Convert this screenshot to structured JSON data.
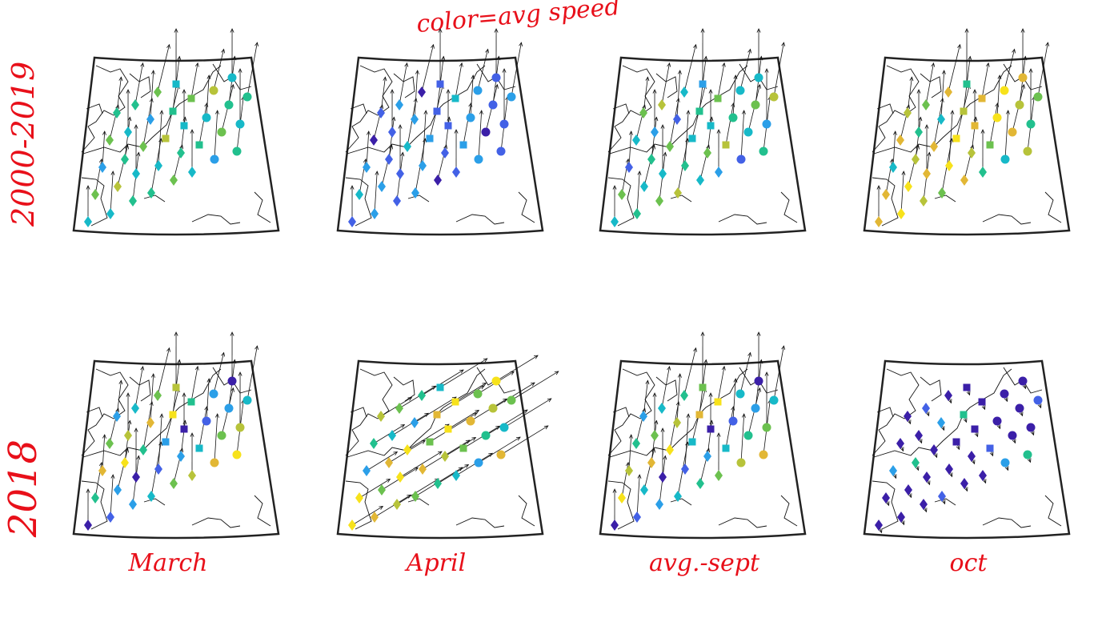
{
  "annotations": {
    "title": "color=avg speed",
    "row_labels": [
      "2000-2019",
      "2018"
    ],
    "column_labels": [
      "March",
      "April",
      "avg.-sept",
      "oct"
    ],
    "annotation_color": "#e8101a"
  },
  "maps": [
    {
      "row": "2000-2019",
      "column": "March",
      "palette": "cyan-green"
    },
    {
      "row": "2000-2019",
      "column": "April",
      "palette": "blue"
    },
    {
      "row": "2000-2019",
      "column": "avg.-sept",
      "palette": "cyan-olive"
    },
    {
      "row": "2000-2019",
      "column": "oct",
      "palette": "yellow-green"
    },
    {
      "row": "2018",
      "column": "March",
      "palette": "mixed-violet"
    },
    {
      "row": "2018",
      "column": "April",
      "palette": "yellow-cyan"
    },
    {
      "row": "2018",
      "column": "avg.-sept",
      "palette": "violet-yellow"
    },
    {
      "row": "2018",
      "column": "oct",
      "palette": "violet"
    }
  ],
  "marker_symbols": [
    "diamond",
    "square",
    "circle"
  ],
  "colors": {
    "map_frame": "#222222",
    "coastline": "#111111",
    "arrow": "#111111",
    "speed_scale": [
      "#3b1fa8",
      "#4361e6",
      "#2b9fe8",
      "#17b9c8",
      "#22c08e",
      "#6cc14f",
      "#b7c33a",
      "#e2b735",
      "#f7e21b"
    ]
  }
}
